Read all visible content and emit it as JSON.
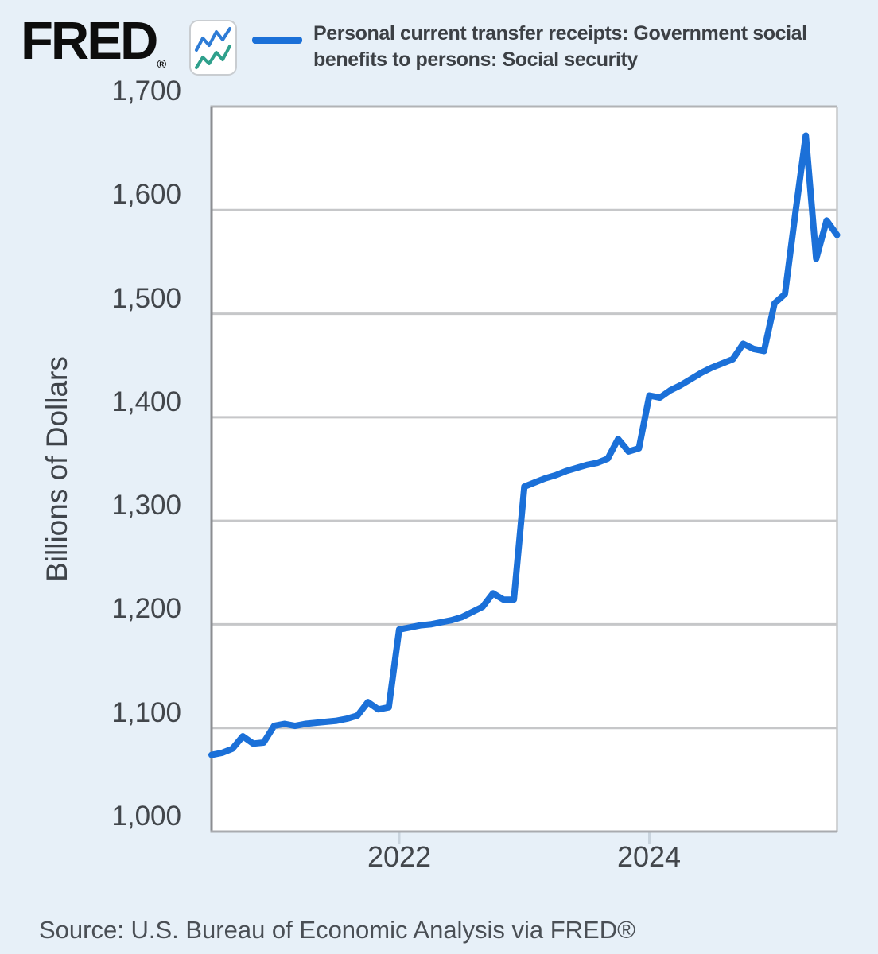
{
  "header": {
    "logo_text": "FRED",
    "logo_registered": "®",
    "legend": {
      "series_label": "Personal current transfer receipts: Government social benefits to persons: Social security",
      "series_label_line1": "Personal current transfer receipts: Government social",
      "series_label_line2": "benefits to persons: Social security",
      "swatch_color": "#1b70d8"
    }
  },
  "y_axis": {
    "title": "Billions of Dollars",
    "tick_labels": [
      "1,700",
      "1,600",
      "1,500",
      "1,400",
      "1,300",
      "1,200",
      "1,100",
      "1,000"
    ],
    "min": 1000,
    "max": 1700,
    "interval": 100
  },
  "x_axis": {
    "tick_labels": [
      "2022",
      "2024"
    ]
  },
  "footer": {
    "source": "Source: U.S. Bureau of Economic Analysis via FRED®"
  },
  "colors": {
    "page_background": "#e7f0f8",
    "plot_background": "#ffffff",
    "line": "#1b70d8",
    "gridline": "#c6c7c9",
    "left_axis": "#8b8d91",
    "label_text": "#42464b"
  },
  "chart_data": {
    "type": "line",
    "title": "Personal current transfer receipts: Government social benefits to persons: Social security",
    "xlabel": "",
    "ylabel": "Billions of Dollars",
    "ylim": [
      1000,
      1700
    ],
    "y_tick_interval": 100,
    "x_tick_labels": [
      "2022",
      "2024"
    ],
    "grid": true,
    "legend_position": "top",
    "units": "Billions of Dollars, monthly (values estimated from plot)",
    "x": [
      "2020-07",
      "2020-08",
      "2020-09",
      "2020-10",
      "2020-11",
      "2020-12",
      "2021-01",
      "2021-02",
      "2021-03",
      "2021-04",
      "2021-05",
      "2021-06",
      "2021-07",
      "2021-08",
      "2021-09",
      "2021-10",
      "2021-11",
      "2021-12",
      "2022-01",
      "2022-02",
      "2022-03",
      "2022-04",
      "2022-05",
      "2022-06",
      "2022-07",
      "2022-08",
      "2022-09",
      "2022-10",
      "2022-11",
      "2022-12",
      "2023-01",
      "2023-02",
      "2023-03",
      "2023-04",
      "2023-05",
      "2023-06",
      "2023-07",
      "2023-08",
      "2023-09",
      "2023-10",
      "2023-11",
      "2023-12",
      "2024-01",
      "2024-02",
      "2024-03",
      "2024-04",
      "2024-05",
      "2024-06",
      "2024-07",
      "2024-08",
      "2024-09",
      "2024-10",
      "2024-11",
      "2024-12",
      "2025-01",
      "2025-02",
      "2025-03",
      "2025-04",
      "2025-05",
      "2025-06",
      "2025-07"
    ],
    "values": [
      1074,
      1076,
      1080,
      1092,
      1085,
      1086,
      1102,
      1104,
      1102,
      1104,
      1105,
      1106,
      1107,
      1109,
      1112,
      1125,
      1118,
      1120,
      1195,
      1197,
      1199,
      1200,
      1202,
      1204,
      1207,
      1212,
      1217,
      1230,
      1224,
      1224,
      1333,
      1337,
      1341,
      1344,
      1348,
      1351,
      1354,
      1356,
      1360,
      1379,
      1367,
      1370,
      1421,
      1419,
      1426,
      1431,
      1437,
      1443,
      1448,
      1452,
      1456,
      1471,
      1466,
      1464,
      1510,
      1519,
      1597,
      1672,
      1553,
      1590,
      1576
    ]
  }
}
